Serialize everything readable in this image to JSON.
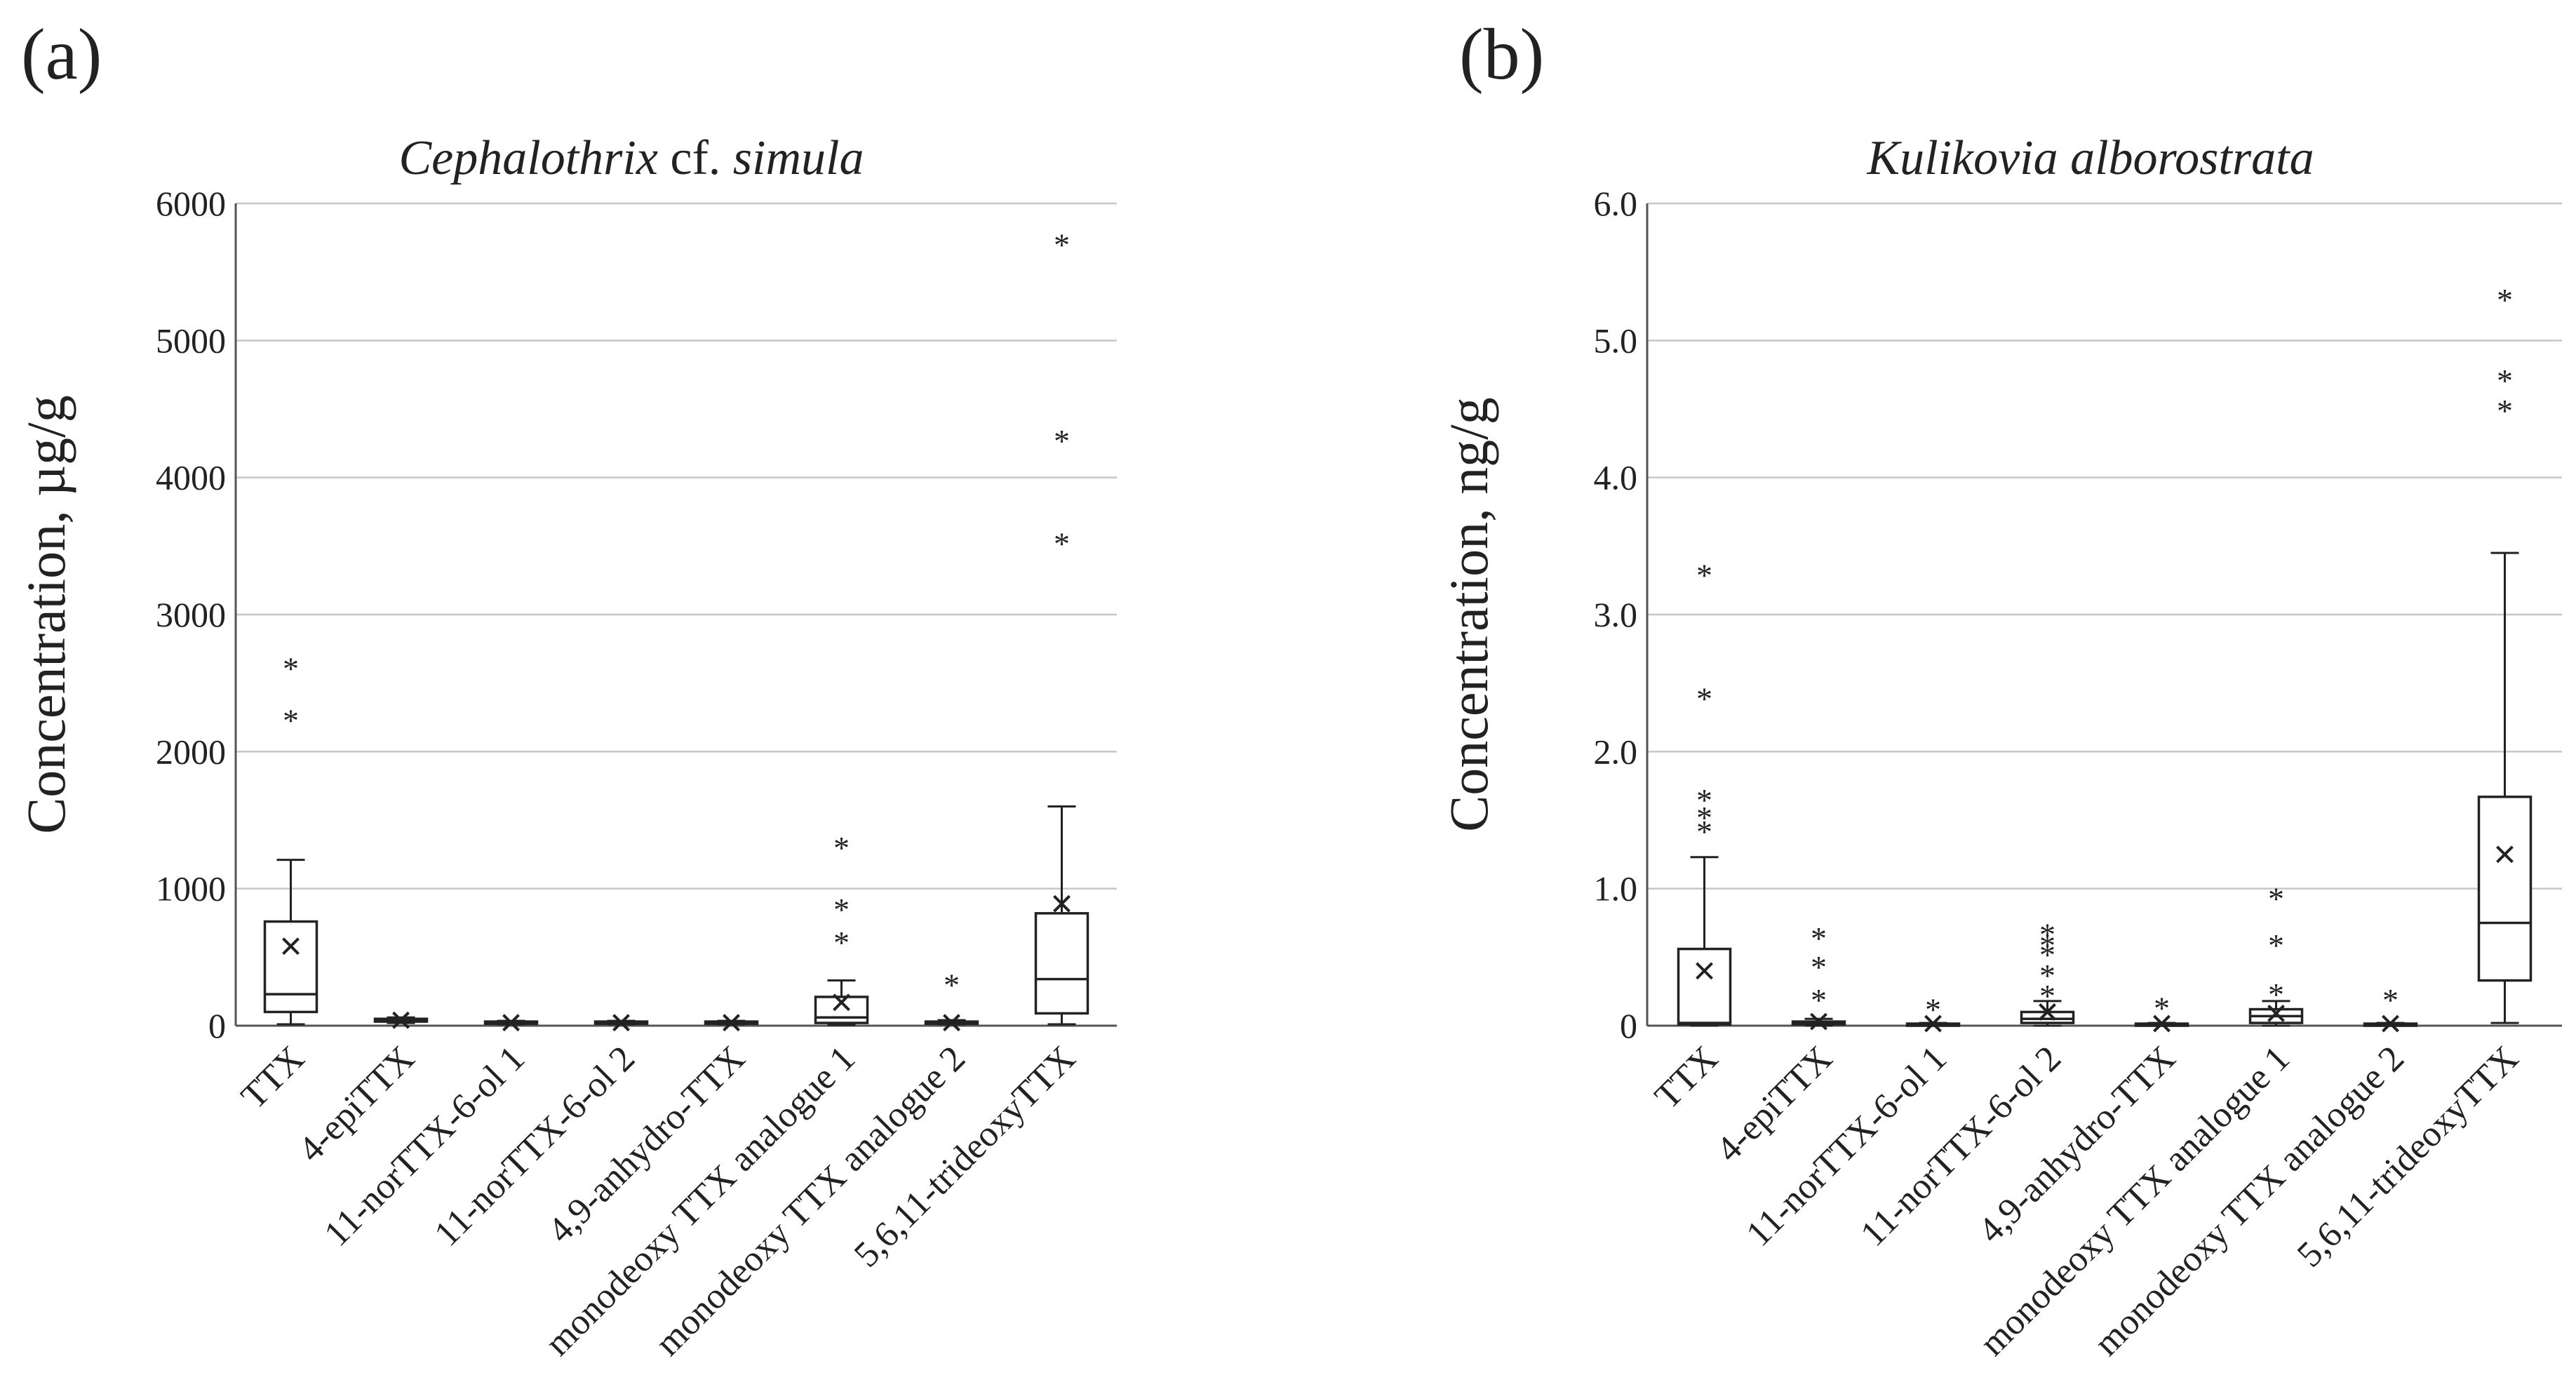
{
  "chart_data": [
    {
      "type": "box",
      "panel_label": "(a)",
      "title_parts": [
        {
          "text": "Cephalothrix",
          "italic": true
        },
        {
          "text": " cf. ",
          "italic": false
        },
        {
          "text": "simula",
          "italic": true
        }
      ],
      "ylabel": "Concentration, µg/g",
      "ylim": [
        0,
        6000
      ],
      "ytick_values": [
        0,
        1000,
        2000,
        3000,
        4000,
        5000,
        6000
      ],
      "ytick_labels": [
        "0",
        "1000",
        "2000",
        "3000",
        "4000",
        "5000",
        "6000"
      ],
      "grid": true,
      "categories": [
        "TTX",
        "4-epiTTX",
        "11-norTTX-6-ol 1",
        "11-norTTX-6-ol 2",
        "4,9-anhydro-TTX",
        "monodeoxy TTX analogue 1",
        "monodeoxy TTX analogue 2",
        "5,6,11-trideoxyTTX"
      ],
      "boxes": [
        {
          "min": 10,
          "q1": 100,
          "median": 230,
          "q3": 760,
          "max": 1210,
          "mean": 580,
          "outliers": [
            2260,
            2640
          ]
        },
        {
          "min": 20,
          "q1": 30,
          "median": 40,
          "q3": 50,
          "max": 60,
          "mean": 40,
          "outliers": []
        },
        {
          "min": 10,
          "q1": 15,
          "median": 20,
          "q3": 30,
          "max": 35,
          "mean": 22,
          "outliers": []
        },
        {
          "min": 10,
          "q1": 15,
          "median": 20,
          "q3": 30,
          "max": 35,
          "mean": 22,
          "outliers": []
        },
        {
          "min": 10,
          "q1": 15,
          "median": 20,
          "q3": 30,
          "max": 35,
          "mean": 22,
          "outliers": []
        },
        {
          "min": 5,
          "q1": 20,
          "median": 60,
          "q3": 210,
          "max": 330,
          "mean": 170,
          "outliers": [
            640,
            880,
            1330
          ]
        },
        {
          "min": 10,
          "q1": 15,
          "median": 20,
          "q3": 30,
          "max": 40,
          "mean": 22,
          "outliers": [
            330
          ]
        },
        {
          "min": 10,
          "q1": 90,
          "median": 340,
          "q3": 820,
          "max": 1600,
          "mean": 890,
          "outliers": [
            3550,
            4300,
            5730
          ]
        }
      ]
    },
    {
      "type": "box",
      "panel_label": "(b)",
      "title_parts": [
        {
          "text": "Kulikovia alborostrata",
          "italic": true
        }
      ],
      "ylabel": "Concentration, ng/g",
      "ylim": [
        0,
        6.0
      ],
      "ytick_values": [
        0,
        1.0,
        2.0,
        3.0,
        4.0,
        5.0,
        6.0
      ],
      "ytick_labels": [
        "0",
        "1.0",
        "2.0",
        "3.0",
        "4.0",
        "5.0",
        "6.0"
      ],
      "grid": true,
      "categories": [
        "TTX",
        "4-epiTTX",
        "11-norTTX-6-ol 1",
        "11-norTTX-6-ol 2",
        "4,9-anhydro-TTX",
        "monodeoxy TTX analogue 1",
        "monodeoxy TTX analogue 2",
        "5,6,11-trideoxyTTX"
      ],
      "boxes": [
        {
          "min": 0,
          "q1": 0.01,
          "median": 0.02,
          "q3": 0.56,
          "max": 1.23,
          "mean": 0.4,
          "outliers": [
            1.45,
            1.55,
            1.68,
            2.42,
            3.32
          ]
        },
        {
          "min": 0,
          "q1": 0.01,
          "median": 0.02,
          "q3": 0.03,
          "max": 0.05,
          "mean": 0.03,
          "outliers": [
            0.22,
            0.46,
            0.67
          ]
        },
        {
          "min": 0,
          "q1": 0.005,
          "median": 0.01,
          "q3": 0.015,
          "max": 0.02,
          "mean": 0.015,
          "outliers": [
            0.15
          ]
        },
        {
          "min": 0,
          "q1": 0.02,
          "median": 0.05,
          "q3": 0.1,
          "max": 0.18,
          "mean": 0.1,
          "outliers": [
            0.25,
            0.4,
            0.55,
            0.62,
            0.7
          ]
        },
        {
          "min": 0,
          "q1": 0.005,
          "median": 0.01,
          "q3": 0.015,
          "max": 0.02,
          "mean": 0.015,
          "outliers": [
            0.16
          ]
        },
        {
          "min": 0,
          "q1": 0.02,
          "median": 0.07,
          "q3": 0.12,
          "max": 0.18,
          "mean": 0.09,
          "outliers": [
            0.26,
            0.62,
            0.96
          ]
        },
        {
          "min": 0,
          "q1": 0.005,
          "median": 0.01,
          "q3": 0.015,
          "max": 0.02,
          "mean": 0.015,
          "outliers": [
            0.22
          ]
        },
        {
          "min": 0.02,
          "q1": 0.33,
          "median": 0.75,
          "q3": 1.67,
          "max": 3.45,
          "mean": 1.25,
          "outliers": [
            4.52,
            4.74,
            5.33
          ]
        }
      ]
    }
  ]
}
